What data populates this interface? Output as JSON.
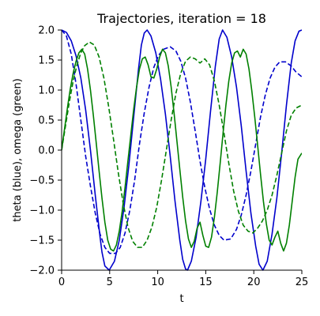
{
  "chart_data": {
    "type": "line",
    "title": "Trajectories, iteration = 18",
    "xlabel": "t",
    "ylabel": "theta (blue), omega (green)",
    "xlim": [
      0,
      25
    ],
    "ylim": [
      -2.0,
      2.0
    ],
    "xticks": [
      0,
      5,
      10,
      15,
      20,
      25
    ],
    "xtick_labels": [
      "0",
      "5",
      "10",
      "15",
      "20",
      "25"
    ],
    "yticks": [
      -2.0,
      -1.5,
      -1.0,
      -0.5,
      0.0,
      0.5,
      1.0,
      1.5,
      2.0
    ],
    "ytick_labels": [
      "−2.0",
      "−1.5",
      "−1.0",
      "−0.5",
      "0.0",
      "0.5",
      "1.0",
      "1.5",
      "2.0"
    ],
    "grid": false,
    "series": [
      {
        "color": "#0000cc",
        "style": "solid",
        "points": [
          [
            0,
            2.0
          ],
          [
            0.5,
            1.96
          ],
          [
            1,
            1.82
          ],
          [
            1.5,
            1.57
          ],
          [
            2,
            1.2
          ],
          [
            2.5,
            0.67
          ],
          [
            3,
            0.0
          ],
          [
            3.5,
            -0.75
          ],
          [
            4,
            -1.45
          ],
          [
            4.2,
            -1.7
          ],
          [
            4.5,
            -1.93
          ],
          [
            4.95,
            -2.0
          ],
          [
            5.5,
            -1.85
          ],
          [
            6,
            -1.5
          ],
          [
            6.5,
            -0.95
          ],
          [
            7,
            -0.25
          ],
          [
            7.5,
            0.55
          ],
          [
            8,
            1.35
          ],
          [
            8.3,
            1.75
          ],
          [
            8.6,
            1.95
          ],
          [
            8.9,
            2.0
          ],
          [
            9.3,
            1.9
          ],
          [
            9.8,
            1.62
          ],
          [
            10.3,
            1.18
          ],
          [
            10.8,
            0.6
          ],
          [
            11.3,
            -0.1
          ],
          [
            11.8,
            -0.85
          ],
          [
            12.3,
            -1.5
          ],
          [
            12.6,
            -1.82
          ],
          [
            12.9,
            -1.98
          ],
          [
            13.1,
            -2.0
          ],
          [
            13.5,
            -1.85
          ],
          [
            14,
            -1.45
          ],
          [
            14.5,
            -0.85
          ],
          [
            15,
            -0.15
          ],
          [
            15.5,
            0.65
          ],
          [
            16,
            1.4
          ],
          [
            16.4,
            1.85
          ],
          [
            16.75,
            2.0
          ],
          [
            17.2,
            1.88
          ],
          [
            17.7,
            1.55
          ],
          [
            18.2,
            1.05
          ],
          [
            18.7,
            0.4
          ],
          [
            19.2,
            -0.35
          ],
          [
            19.7,
            -1.05
          ],
          [
            20.2,
            -1.6
          ],
          [
            20.55,
            -1.9
          ],
          [
            20.95,
            -2.0
          ],
          [
            21.4,
            -1.85
          ],
          [
            21.9,
            -1.4
          ],
          [
            22.4,
            -0.8
          ],
          [
            22.9,
            -0.05
          ],
          [
            23.4,
            0.75
          ],
          [
            23.9,
            1.45
          ],
          [
            24.3,
            1.82
          ],
          [
            24.7,
            1.98
          ],
          [
            25,
            2.0
          ]
        ]
      },
      {
        "color": "#0000cc",
        "style": "dashed",
        "points": [
          [
            0,
            2.0
          ],
          [
            0.5,
            1.9
          ],
          [
            1,
            1.6
          ],
          [
            1.5,
            1.1
          ],
          [
            2,
            0.5
          ],
          [
            2.5,
            -0.1
          ],
          [
            3,
            -0.6
          ],
          [
            3.5,
            -1.05
          ],
          [
            4,
            -1.4
          ],
          [
            4.5,
            -1.62
          ],
          [
            5,
            -1.72
          ],
          [
            5.6,
            -1.72
          ],
          [
            6.1,
            -1.62
          ],
          [
            6.6,
            -1.38
          ],
          [
            7.1,
            -1.0
          ],
          [
            7.6,
            -0.5
          ],
          [
            8.1,
            0.1
          ],
          [
            8.6,
            0.62
          ],
          [
            9.1,
            1.05
          ],
          [
            9.6,
            1.38
          ],
          [
            10.1,
            1.58
          ],
          [
            10.6,
            1.68
          ],
          [
            11.3,
            1.72
          ],
          [
            11.9,
            1.65
          ],
          [
            12.4,
            1.48
          ],
          [
            12.9,
            1.2
          ],
          [
            13.4,
            0.8
          ],
          [
            13.9,
            0.32
          ],
          [
            14.4,
            -0.18
          ],
          [
            14.9,
            -0.62
          ],
          [
            15.4,
            -0.98
          ],
          [
            15.9,
            -1.25
          ],
          [
            16.4,
            -1.42
          ],
          [
            16.9,
            -1.5
          ],
          [
            17.6,
            -1.48
          ],
          [
            18.2,
            -1.32
          ],
          [
            18.7,
            -1.08
          ],
          [
            19.2,
            -0.75
          ],
          [
            19.7,
            -0.35
          ],
          [
            20.2,
            0.1
          ],
          [
            20.7,
            0.55
          ],
          [
            21.2,
            0.92
          ],
          [
            21.7,
            1.2
          ],
          [
            22.2,
            1.38
          ],
          [
            22.7,
            1.47
          ],
          [
            23.3,
            1.47
          ],
          [
            23.9,
            1.4
          ],
          [
            24.4,
            1.3
          ],
          [
            25,
            1.22
          ]
        ]
      },
      {
        "color": "#008000",
        "style": "solid",
        "points": [
          [
            0,
            0.0
          ],
          [
            0.3,
            0.35
          ],
          [
            0.6,
            0.7
          ],
          [
            0.9,
            1.02
          ],
          [
            1.2,
            1.28
          ],
          [
            1.5,
            1.48
          ],
          [
            1.8,
            1.62
          ],
          [
            2.1,
            1.68
          ],
          [
            2.4,
            1.6
          ],
          [
            2.7,
            1.35
          ],
          [
            3.0,
            1.0
          ],
          [
            3.3,
            0.58
          ],
          [
            3.6,
            0.12
          ],
          [
            3.9,
            -0.35
          ],
          [
            4.2,
            -0.8
          ],
          [
            4.5,
            -1.2
          ],
          [
            4.8,
            -1.5
          ],
          [
            5.1,
            -1.65
          ],
          [
            5.4,
            -1.68
          ],
          [
            5.7,
            -1.58
          ],
          [
            6.0,
            -1.35
          ],
          [
            6.3,
            -1.02
          ],
          [
            6.6,
            -0.62
          ],
          [
            6.9,
            -0.18
          ],
          [
            7.2,
            0.25
          ],
          [
            7.5,
            0.68
          ],
          [
            7.8,
            1.05
          ],
          [
            8.1,
            1.35
          ],
          [
            8.4,
            1.52
          ],
          [
            8.7,
            1.55
          ],
          [
            9.0,
            1.42
          ],
          [
            9.3,
            1.22
          ],
          [
            9.6,
            1.2
          ],
          [
            9.9,
            1.35
          ],
          [
            10.2,
            1.55
          ],
          [
            10.5,
            1.68
          ],
          [
            10.8,
            1.62
          ],
          [
            11.1,
            1.4
          ],
          [
            11.4,
            1.05
          ],
          [
            11.7,
            0.62
          ],
          [
            12.0,
            0.15
          ],
          [
            12.3,
            -0.32
          ],
          [
            12.6,
            -0.78
          ],
          [
            12.9,
            -1.18
          ],
          [
            13.2,
            -1.48
          ],
          [
            13.5,
            -1.62
          ],
          [
            13.8,
            -1.52
          ],
          [
            14.1,
            -1.3
          ],
          [
            14.4,
            -1.2
          ],
          [
            14.7,
            -1.42
          ],
          [
            15.0,
            -1.6
          ],
          [
            15.3,
            -1.62
          ],
          [
            15.6,
            -1.45
          ],
          [
            15.9,
            -1.12
          ],
          [
            16.2,
            -0.7
          ],
          [
            16.5,
            -0.22
          ],
          [
            16.8,
            0.28
          ],
          [
            17.1,
            0.75
          ],
          [
            17.4,
            1.15
          ],
          [
            17.7,
            1.45
          ],
          [
            18.0,
            1.62
          ],
          [
            18.3,
            1.65
          ],
          [
            18.6,
            1.55
          ],
          [
            18.9,
            1.68
          ],
          [
            19.2,
            1.6
          ],
          [
            19.5,
            1.35
          ],
          [
            19.8,
            0.98
          ],
          [
            20.1,
            0.55
          ],
          [
            20.4,
            0.08
          ],
          [
            20.7,
            -0.4
          ],
          [
            21.0,
            -0.85
          ],
          [
            21.3,
            -1.22
          ],
          [
            21.6,
            -1.5
          ],
          [
            21.9,
            -1.58
          ],
          [
            22.2,
            -1.45
          ],
          [
            22.5,
            -1.35
          ],
          [
            22.8,
            -1.55
          ],
          [
            23.1,
            -1.68
          ],
          [
            23.4,
            -1.55
          ],
          [
            23.7,
            -1.25
          ],
          [
            24.0,
            -0.85
          ],
          [
            24.3,
            -0.45
          ],
          [
            24.6,
            -0.15
          ],
          [
            25,
            -0.05
          ]
        ]
      },
      {
        "color": "#008000",
        "style": "dashed",
        "points": [
          [
            0,
            0.0
          ],
          [
            0.4,
            0.4
          ],
          [
            0.8,
            0.8
          ],
          [
            1.2,
            1.15
          ],
          [
            1.6,
            1.42
          ],
          [
            2.0,
            1.62
          ],
          [
            2.4,
            1.74
          ],
          [
            2.9,
            1.8
          ],
          [
            3.4,
            1.75
          ],
          [
            3.9,
            1.55
          ],
          [
            4.4,
            1.2
          ],
          [
            4.9,
            0.72
          ],
          [
            5.4,
            0.18
          ],
          [
            5.9,
            -0.38
          ],
          [
            6.4,
            -0.88
          ],
          [
            6.9,
            -1.28
          ],
          [
            7.4,
            -1.52
          ],
          [
            7.9,
            -1.62
          ],
          [
            8.4,
            -1.62
          ],
          [
            8.9,
            -1.5
          ],
          [
            9.4,
            -1.28
          ],
          [
            9.9,
            -0.95
          ],
          [
            10.4,
            -0.5
          ],
          [
            10.9,
            0.0
          ],
          [
            11.4,
            0.5
          ],
          [
            11.9,
            0.95
          ],
          [
            12.4,
            1.28
          ],
          [
            12.9,
            1.48
          ],
          [
            13.4,
            1.55
          ],
          [
            13.9,
            1.52
          ],
          [
            14.4,
            1.45
          ],
          [
            14.9,
            1.52
          ],
          [
            15.4,
            1.42
          ],
          [
            15.9,
            1.15
          ],
          [
            16.4,
            0.75
          ],
          [
            16.9,
            0.28
          ],
          [
            17.4,
            -0.22
          ],
          [
            17.9,
            -0.68
          ],
          [
            18.4,
            -1.02
          ],
          [
            18.9,
            -1.25
          ],
          [
            19.4,
            -1.35
          ],
          [
            19.9,
            -1.38
          ],
          [
            20.4,
            -1.3
          ],
          [
            20.9,
            -1.18
          ],
          [
            21.4,
            -1.0
          ],
          [
            21.9,
            -0.75
          ],
          [
            22.4,
            -0.42
          ],
          [
            22.9,
            -0.05
          ],
          [
            23.4,
            0.32
          ],
          [
            23.9,
            0.58
          ],
          [
            24.4,
            0.7
          ],
          [
            25,
            0.75
          ]
        ]
      }
    ]
  }
}
